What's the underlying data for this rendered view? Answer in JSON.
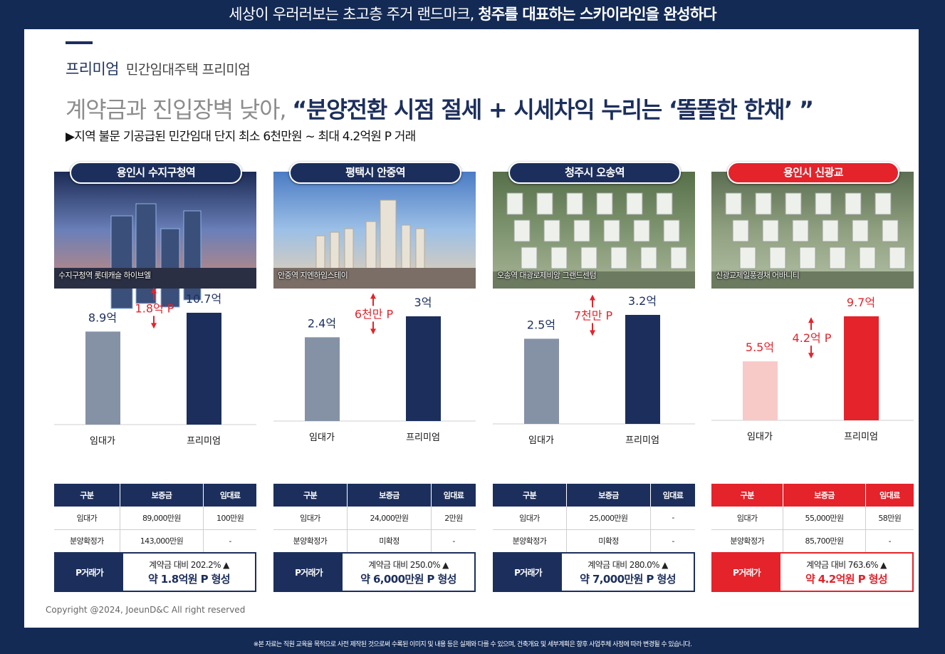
{
  "top_banner": {
    "normal": "세상이 우러러보는 초고층 주거 랜드마크, ",
    "bold": "청주를 대표하는 스카이라인을 완성하다"
  },
  "section": {
    "title": "프리미엄",
    "subtitle": "민간임대주택 프리미엄"
  },
  "headline": {
    "gray": "계약금과 진입장벽 낮아, ",
    "navy": "“분양전환 시점 절세 + 시세차익 누리는 ‘똘똘한 한채’ ”"
  },
  "subline": "▶지역 불문 기공급된 민간임대 단지 최소 6천만원 ~ 최대 4.2억원 P 거래",
  "colors": {
    "navy": "#1c2f5c",
    "red": "#e4232b",
    "gray_bar": "#8592a6",
    "pink_bar": "#f7c9c7"
  },
  "table_headers": [
    "구분",
    "보증금",
    "임대료"
  ],
  "ptrade_label": "P거래가",
  "cards": [
    {
      "region": "용인시 수지구청역",
      "caption": "수지구청역 롯데캐슬 하이브엘",
      "highlight": false,
      "rows": [
        [
          "임대가",
          "89,000만원",
          "100만원"
        ],
        [
          "분양확정가",
          "143,000만원",
          "-"
        ]
      ],
      "ptrade_line1": "계약금 대비 202.2% ▲",
      "ptrade_line2": "약 1.8억원 P 형성",
      "chart_data": {
        "type": "bar",
        "categories": [
          "임대가",
          "프리미엄"
        ],
        "values": [
          8.9,
          10.7
        ],
        "value_labels": [
          "8.9억",
          "10.7억"
        ],
        "diff_label": "1.8억 P"
      }
    },
    {
      "region": "평택시 안중역",
      "caption": "안중역 지엔하임스테이",
      "highlight": false,
      "rows": [
        [
          "임대가",
          "24,000만원",
          "2만원"
        ],
        [
          "분양확정가",
          "미확정",
          "-"
        ]
      ],
      "ptrade_line1": "계약금 대비 250.0% ▲",
      "ptrade_line2": "약 6,000만원 P 형성",
      "chart_data": {
        "type": "bar",
        "categories": [
          "임대가",
          "프리미엄"
        ],
        "values": [
          2.4,
          3
        ],
        "value_labels": [
          "2.4억",
          "3억"
        ],
        "diff_label": "6천만 P"
      }
    },
    {
      "region": "청주시 오송역",
      "caption": "오송역 대광로제비앙 그랜드센텀",
      "highlight": false,
      "rows": [
        [
          "임대가",
          "25,000만원",
          "-"
        ],
        [
          "분양확정가",
          "미확정",
          "-"
        ]
      ],
      "ptrade_line1": "계약금 대비 280.0% ▲",
      "ptrade_line2": "약 7,000만원 P 형성",
      "chart_data": {
        "type": "bar",
        "categories": [
          "임대가",
          "프리미엄"
        ],
        "values": [
          2.5,
          3.2
        ],
        "value_labels": [
          "2.5억",
          "3.2억"
        ],
        "diff_label": "7천만 P"
      }
    },
    {
      "region": "용인시 신광교",
      "caption": "신광교제일풍경채 어바니티",
      "highlight": true,
      "rows": [
        [
          "임대가",
          "55,000만원",
          "58만원"
        ],
        [
          "분양확정가",
          "85,700만원",
          "-"
        ]
      ],
      "ptrade_line1": "계약금 대비 763.6% ▲",
      "ptrade_line2": "약 4.2억원 P 형성",
      "chart_data": {
        "type": "bar",
        "categories": [
          "임대가",
          "프리미엄"
        ],
        "values": [
          5.5,
          9.7
        ],
        "value_labels": [
          "5.5억",
          "9.7억"
        ],
        "diff_label": "4.2억 P"
      }
    }
  ],
  "copyright": "Copyright @2024, JoeunD&C All right reserved",
  "footnote": "※본 자료는 직원 교육을 목적으로 사전 제작된 것으로써 수록된 이미지 및 내용 등은 실제와 다를 수 있으며, 건축개요 및 세부계획은 향후 사업주체 사정에 따라 변경될 수 있습니다."
}
